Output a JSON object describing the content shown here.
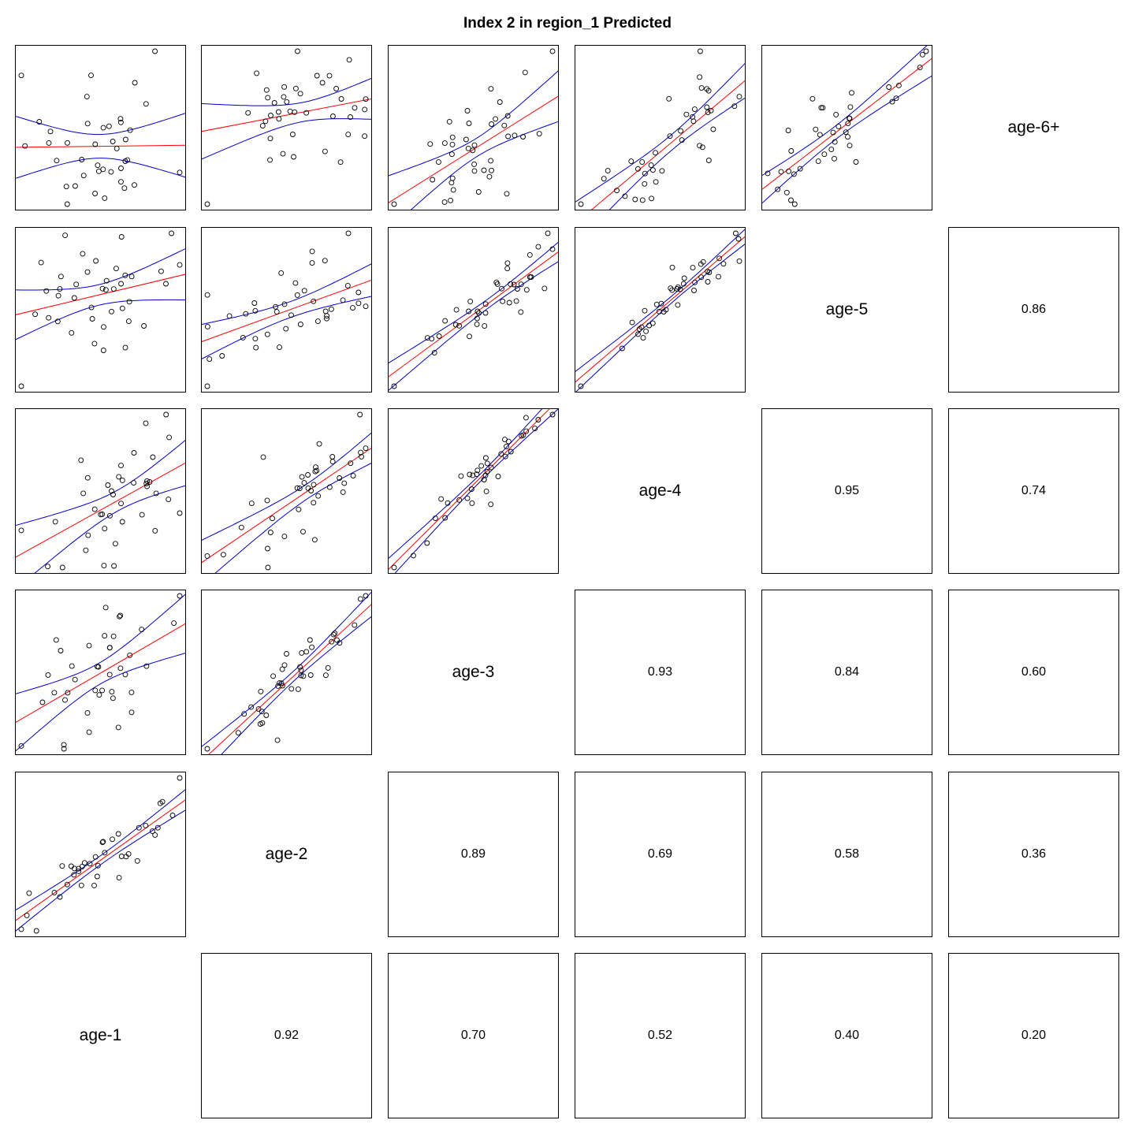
{
  "title": "Index 2 in region_1 Predicted",
  "chart_data": {
    "type": "scatter",
    "title": "Index 2 in region_1 Predicted",
    "variables": [
      "age-1",
      "age-2",
      "age-3",
      "age-4",
      "age-5",
      "age-6+"
    ],
    "correlations": {
      "age-1": {
        "age-2": "0.92",
        "age-3": "0.70",
        "age-4": "0.52",
        "age-5": "0.40",
        "age-6+": "0.20"
      },
      "age-2": {
        "age-3": "0.89",
        "age-4": "0.69",
        "age-5": "0.58",
        "age-6+": "0.36"
      },
      "age-3": {
        "age-4": "0.93",
        "age-5": "0.84",
        "age-6+": "0.60"
      },
      "age-4": {
        "age-5": "0.95",
        "age-6+": "0.74"
      },
      "age-5": {
        "age-6+": "0.86"
      }
    },
    "colors": {
      "points": "#000000",
      "fit_line": "#ff0000",
      "confidence_band": "#0000cc"
    },
    "axes": "none",
    "grid": false
  }
}
